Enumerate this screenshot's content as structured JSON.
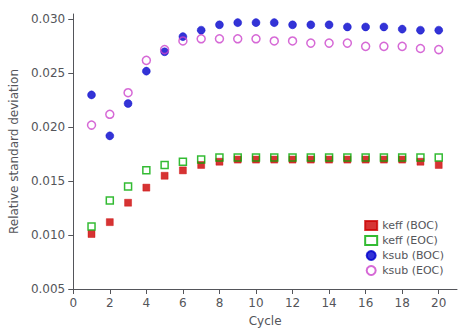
{
  "chart_data": {
    "type": "scatter",
    "xlabel": "Cycle",
    "ylabel": "Relative standard deviation",
    "x": [
      1,
      2,
      3,
      4,
      5,
      6,
      7,
      8,
      9,
      10,
      11,
      12,
      13,
      14,
      15,
      16,
      17,
      18,
      19,
      20
    ],
    "series": [
      {
        "name": "keff (BOC)",
        "color": "#cc0000",
        "marker": "square",
        "values": [
          0.0101,
          0.0112,
          0.013,
          0.0144,
          0.0155,
          0.016,
          0.0165,
          0.0168,
          0.017,
          0.017,
          0.017,
          0.017,
          0.017,
          0.017,
          0.017,
          0.017,
          0.017,
          0.017,
          0.0168,
          0.0165
        ]
      },
      {
        "name": "keff (EOC)",
        "color": "#00aa00",
        "marker": "open-square",
        "values": [
          0.0108,
          0.0132,
          0.0145,
          0.016,
          0.0165,
          0.0168,
          0.017,
          0.0172,
          0.0172,
          0.0172,
          0.0172,
          0.0172,
          0.0172,
          0.0172,
          0.0172,
          0.0172,
          0.0172,
          0.0172,
          0.0172,
          0.0172
        ]
      },
      {
        "name": "ksub (BOC)",
        "color": "#0000cc",
        "marker": "circle",
        "values": [
          0.023,
          0.0192,
          0.0222,
          0.0252,
          0.027,
          0.0284,
          0.029,
          0.0295,
          0.0297,
          0.0297,
          0.0297,
          0.0295,
          0.0295,
          0.0295,
          0.0293,
          0.0293,
          0.0293,
          0.0291,
          0.029,
          0.029
        ]
      },
      {
        "name": "ksub (EOC)",
        "color": "#cc44cc",
        "marker": "open-circle",
        "values": [
          0.0202,
          0.0212,
          0.0232,
          0.0262,
          0.0272,
          0.028,
          0.0282,
          0.0282,
          0.0282,
          0.0282,
          0.028,
          0.028,
          0.0278,
          0.0278,
          0.0278,
          0.0275,
          0.0275,
          0.0275,
          0.0273,
          0.0272
        ]
      }
    ],
    "xlim": [
      0,
      21
    ],
    "ylim": [
      0.005,
      0.0305
    ],
    "xticks": [
      0,
      2,
      4,
      6,
      8,
      10,
      12,
      14,
      16,
      18,
      20
    ],
    "yticks": [
      0.005,
      {
        "value": 0.01,
        "label": "0.010"
      },
      0.015,
      {
        "value": 0.02,
        "label": "0.020"
      },
      0.025,
      {
        "value": 0.03,
        "label": "0.030"
      }
    ],
    "grid": false,
    "legend": "lower right"
  }
}
